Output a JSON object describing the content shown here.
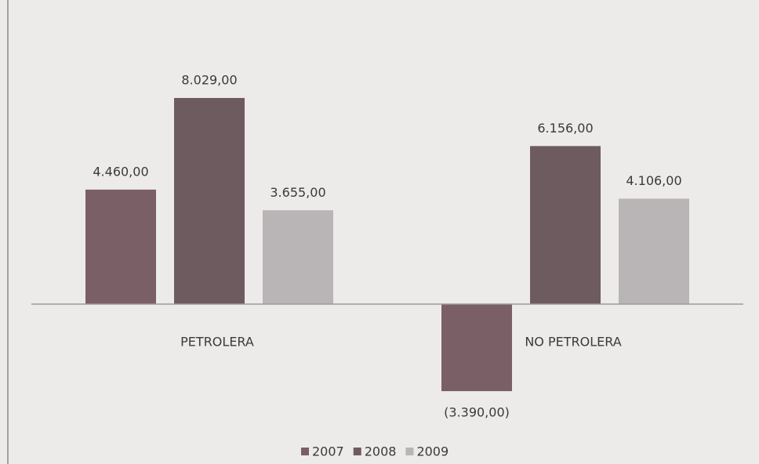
{
  "chart_data": {
    "type": "bar",
    "categories": [
      "PETROLERA",
      "NO PETROLERA"
    ],
    "series": [
      {
        "name": "2007",
        "color": "#7b5f66",
        "values": [
          4460,
          -3390
        ],
        "value_labels": [
          "4.460,00",
          "(3.390,00)"
        ]
      },
      {
        "name": "2008",
        "color": "#6e5b60",
        "values": [
          8029,
          6156
        ],
        "value_labels": [
          "8.029,00",
          "6.156,00"
        ]
      },
      {
        "name": "2009",
        "color": "#b9b5b6",
        "values": [
          3655,
          4106
        ],
        "value_labels": [
          "3.655,00",
          "4.106,00"
        ]
      }
    ],
    "legend": "bottom"
  }
}
